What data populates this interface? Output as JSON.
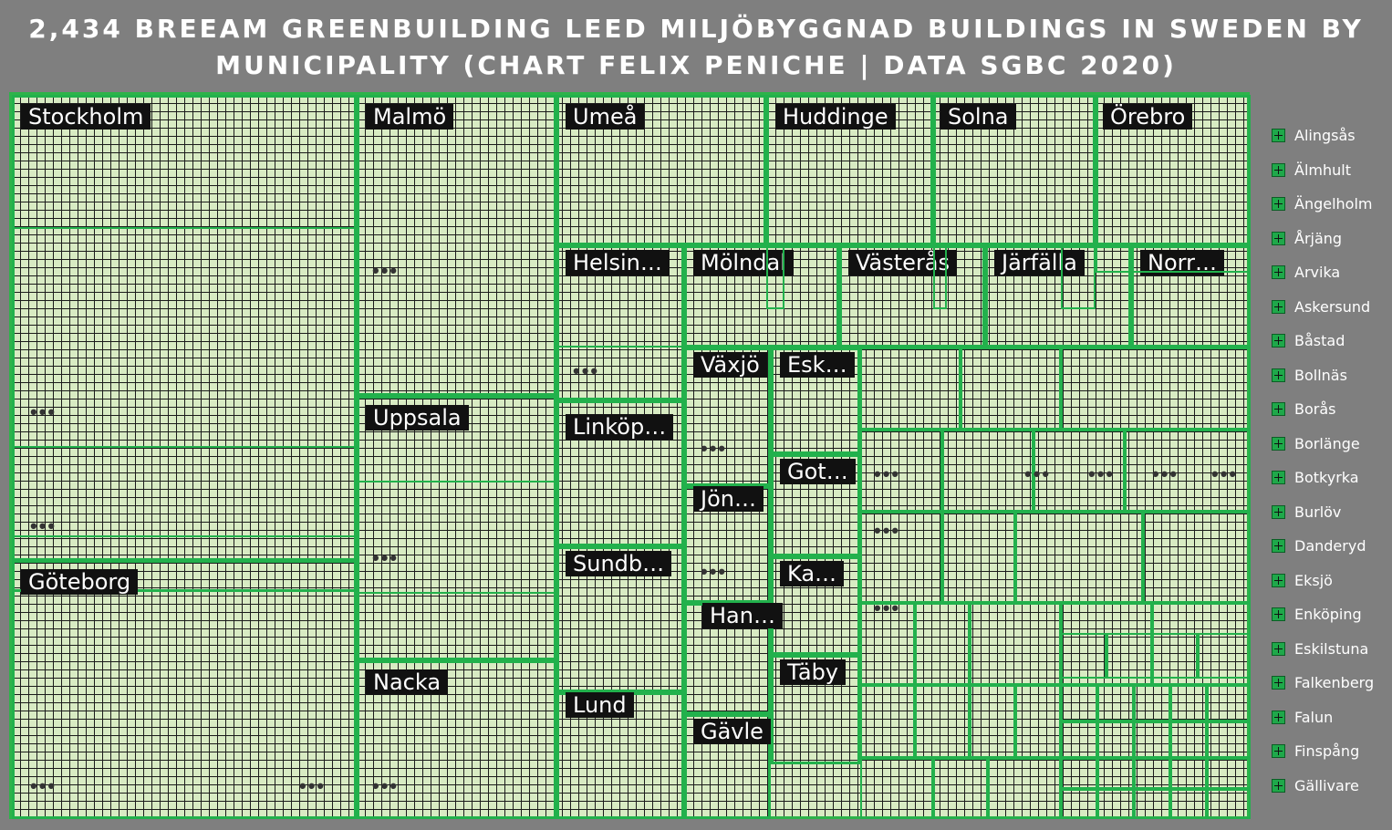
{
  "title": "2,434 BREEAM GREENBUILDING LEED MILJÖBYGGNAD BUILDINGS IN SWEDEN BY MUNICIPALITY  (CHART FELIX PENICHE | DATA SGBC 2020)",
  "colors": {
    "background": "#7f7f7f",
    "cell_fill": "#d8ebc3",
    "border": "#22b14c",
    "label_bg": "#111111",
    "grid": "#1b1b1b"
  },
  "legend": {
    "items": [
      "Alingsås",
      "Älmhult",
      "Ängelholm",
      "Årjäng",
      "Arvika",
      "Askersund",
      "Båstad",
      "Bollnäs",
      "Borås",
      "Borlänge",
      "Botkyrka",
      "Burlöv",
      "Danderyd",
      "Eksjö",
      "Enköping",
      "Eskilstuna",
      "Falkenberg",
      "Falun",
      "Finspång",
      "Gällivare"
    ]
  },
  "chart_data": {
    "type": "treemap",
    "title": "2,434 BREEAM GREENBUILDING LEED MILJÖBYGGNAD BUILDINGS IN SWEDEN BY MUNICIPALITY  (CHART FELIX PENICHE | DATA SGBC 2020)",
    "labels": [
      "Stockholm",
      "Malmö",
      "Umeå",
      "Huddinge",
      "Solna",
      "Örebro",
      "Göteborg",
      "Uppsala",
      "Nacka",
      "Helsin…",
      "Mölndal",
      "Västerås",
      "Järfälla",
      "Norr…",
      "Linköp…",
      "Växjö",
      "Esk…",
      "Got…",
      "Jön…",
      "Sundb…",
      "Ka…",
      "Han…",
      "Täby",
      "Lund",
      "Gävle"
    ]
  }
}
